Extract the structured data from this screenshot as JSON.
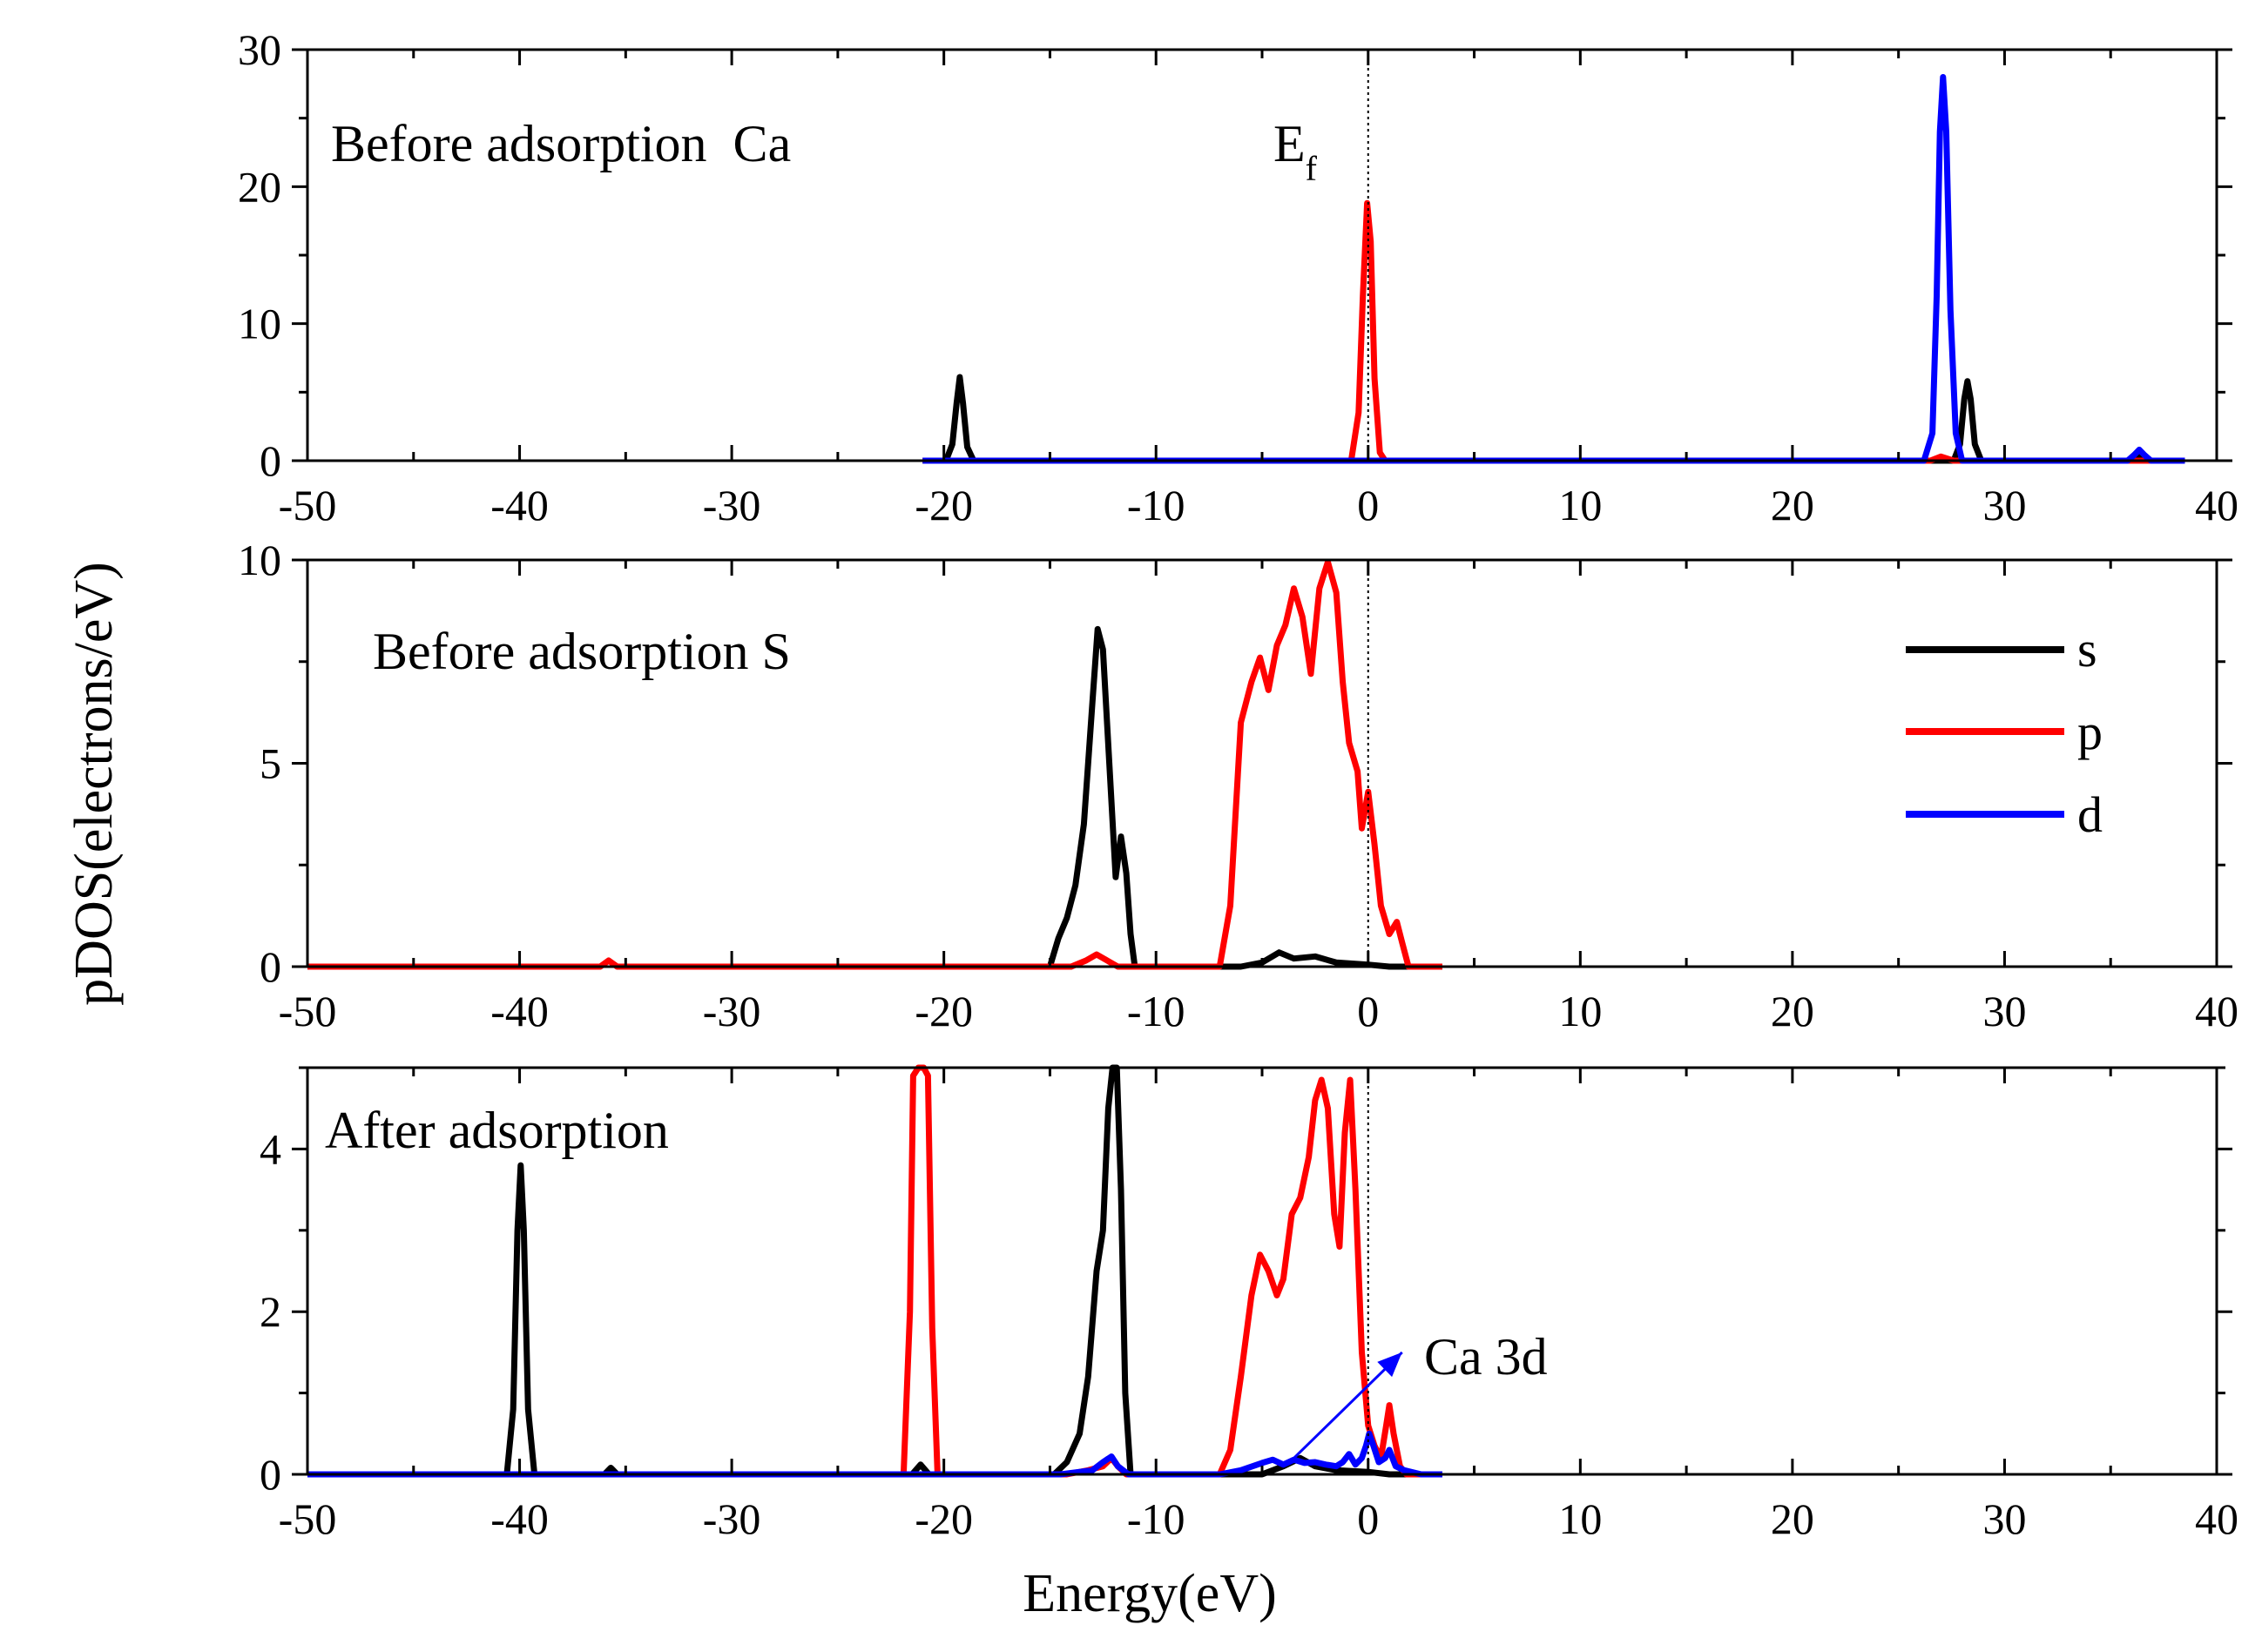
{
  "chart_data": [
    {
      "type": "line",
      "title": "Before adsorption  Ca",
      "xlabel": "Energy(eV)",
      "ylabel": "pDOS(electrons/eV)",
      "xlim": [
        -50,
        40
      ],
      "ylim": [
        0,
        30
      ],
      "x_ticks": [
        -50,
        -40,
        -30,
        -20,
        -10,
        0,
        10,
        20,
        30,
        40
      ],
      "y_ticks": [
        0,
        10,
        20,
        30
      ],
      "fermi_level": {
        "x": 0,
        "label_main": "E",
        "label_sub": "f"
      },
      "series": [
        {
          "name": "s",
          "color": "#000000",
          "points": [
            [
              -21,
              0
            ],
            [
              -19.9,
              0
            ],
            [
              -19.6,
              1.2
            ],
            [
              -19.4,
              4.2
            ],
            [
              -19.25,
              6.1
            ],
            [
              -19.1,
              4.2
            ],
            [
              -18.9,
              1.0
            ],
            [
              -18.6,
              0
            ],
            [
              27.6,
              0
            ],
            [
              27.9,
              1.2
            ],
            [
              28.1,
              4.5
            ],
            [
              28.25,
              5.8
            ],
            [
              28.4,
              4.5
            ],
            [
              28.6,
              1.2
            ],
            [
              28.9,
              0
            ],
            [
              36.0,
              0
            ],
            [
              36.3,
              0.5
            ],
            [
              36.5,
              0.2
            ],
            [
              36.8,
              0
            ],
            [
              38.5,
              0
            ]
          ]
        },
        {
          "name": "p",
          "color": "#ff0000",
          "points": [
            [
              -21,
              0
            ],
            [
              -0.8,
              0
            ],
            [
              -0.45,
              3.5
            ],
            [
              -0.25,
              12
            ],
            [
              -0.05,
              18.8
            ],
            [
              0.12,
              16
            ],
            [
              0.3,
              6
            ],
            [
              0.55,
              0.6
            ],
            [
              0.8,
              0
            ],
            [
              26.5,
              0
            ],
            [
              27.0,
              0.3
            ],
            [
              27.6,
              0
            ],
            [
              38.5,
              0
            ]
          ]
        },
        {
          "name": "d",
          "color": "#0000ff",
          "points": [
            [
              -21,
              0
            ],
            [
              26.2,
              0
            ],
            [
              26.6,
              2
            ],
            [
              26.8,
              12
            ],
            [
              26.95,
              24
            ],
            [
              27.1,
              28
            ],
            [
              27.25,
              24
            ],
            [
              27.45,
              11
            ],
            [
              27.7,
              2
            ],
            [
              28.0,
              0
            ],
            [
              35.8,
              0
            ],
            [
              36.1,
              0.4
            ],
            [
              36.35,
              0.8
            ],
            [
              36.6,
              0.4
            ],
            [
              36.9,
              0
            ],
            [
              38.5,
              0
            ]
          ]
        }
      ]
    },
    {
      "type": "line",
      "title": "Before adsorption S",
      "xlim": [
        -50,
        40
      ],
      "ylim": [
        0,
        10
      ],
      "x_ticks": [
        -50,
        -40,
        -30,
        -20,
        -10,
        0,
        10,
        20,
        30,
        40
      ],
      "y_ticks": [
        0,
        5,
        10
      ],
      "legend": {
        "position": "top-right",
        "entries": [
          "s",
          "p",
          "d"
        ]
      },
      "series": [
        {
          "name": "s",
          "color": "#000000",
          "points": [
            [
              -15.0,
              0
            ],
            [
              -14.6,
              0.7
            ],
            [
              -14.2,
              1.2
            ],
            [
              -13.8,
              2.0
            ],
            [
              -13.4,
              3.5
            ],
            [
              -13.0,
              6.5
            ],
            [
              -12.75,
              8.3
            ],
            [
              -12.5,
              7.8
            ],
            [
              -12.2,
              5.0
            ],
            [
              -11.9,
              2.2
            ],
            [
              -11.65,
              3.2
            ],
            [
              -11.4,
              2.3
            ],
            [
              -11.2,
              0.8
            ],
            [
              -11.0,
              0
            ],
            [
              -6.0,
              0
            ],
            [
              -5.0,
              0.1
            ],
            [
              -4.2,
              0.35
            ],
            [
              -3.5,
              0.2
            ],
            [
              -2.5,
              0.25
            ],
            [
              -1.5,
              0.1
            ],
            [
              0,
              0.05
            ],
            [
              1.0,
              0
            ],
            [
              3.5,
              0
            ]
          ]
        },
        {
          "name": "p",
          "color": "#ff0000",
          "points": [
            [
              -50,
              0
            ],
            [
              -36.2,
              0
            ],
            [
              -35.8,
              0.15
            ],
            [
              -35.4,
              0
            ],
            [
              -14.0,
              0
            ],
            [
              -13.3,
              0.15
            ],
            [
              -12.8,
              0.3
            ],
            [
              -12.3,
              0.15
            ],
            [
              -11.8,
              0
            ],
            [
              -7.0,
              0
            ],
            [
              -6.5,
              1.5
            ],
            [
              -6.0,
              6.0
            ],
            [
              -5.5,
              7.0
            ],
            [
              -5.1,
              7.6
            ],
            [
              -4.7,
              6.8
            ],
            [
              -4.3,
              7.9
            ],
            [
              -3.9,
              8.4
            ],
            [
              -3.5,
              9.3
            ],
            [
              -3.1,
              8.6
            ],
            [
              -2.7,
              7.2
            ],
            [
              -2.3,
              9.3
            ],
            [
              -1.9,
              9.95
            ],
            [
              -1.5,
              9.2
            ],
            [
              -1.2,
              7.0
            ],
            [
              -0.9,
              5.5
            ],
            [
              -0.5,
              4.8
            ],
            [
              -0.3,
              3.4
            ],
            [
              0.0,
              4.3
            ],
            [
              0.3,
              3.0
            ],
            [
              0.6,
              1.5
            ],
            [
              1.0,
              0.8
            ],
            [
              1.35,
              1.1
            ],
            [
              1.6,
              0.6
            ],
            [
              1.9,
              0
            ],
            [
              3.5,
              0
            ]
          ]
        }
      ]
    },
    {
      "type": "line",
      "title": "After adsorption",
      "xlim": [
        -50,
        40
      ],
      "ylim": [
        0,
        5
      ],
      "x_ticks": [
        -50,
        -40,
        -30,
        -20,
        -10,
        0,
        10,
        20,
        30,
        40
      ],
      "y_ticks": [
        0,
        2,
        4
      ],
      "annotation": {
        "text": "Ca 3d",
        "arrow_from": [
          -3.5,
          0.2
        ],
        "arrow_to": [
          1.6,
          1.5
        ]
      },
      "series": [
        {
          "name": "s",
          "color": "#000000",
          "points": [
            [
              -50,
              0
            ],
            [
              -40.6,
              0
            ],
            [
              -40.3,
              0.8
            ],
            [
              -40.1,
              3.0
            ],
            [
              -39.95,
              3.8
            ],
            [
              -39.8,
              3.0
            ],
            [
              -39.6,
              0.8
            ],
            [
              -39.3,
              0
            ],
            [
              -36.0,
              0
            ],
            [
              -35.7,
              0.08
            ],
            [
              -35.4,
              0
            ],
            [
              -21.5,
              0
            ],
            [
              -21.1,
              0.12
            ],
            [
              -20.7,
              0
            ],
            [
              -14.8,
              0
            ],
            [
              -14.2,
              0.15
            ],
            [
              -13.6,
              0.5
            ],
            [
              -13.2,
              1.2
            ],
            [
              -12.8,
              2.5
            ],
            [
              -12.5,
              3.0
            ],
            [
              -12.25,
              4.5
            ],
            [
              -12.05,
              5.0
            ],
            [
              -11.85,
              5.0
            ],
            [
              -11.65,
              3.5
            ],
            [
              -11.45,
              1.0
            ],
            [
              -11.2,
              0
            ],
            [
              -5.0,
              0
            ],
            [
              -4.0,
              0.1
            ],
            [
              -3.2,
              0.2
            ],
            [
              -2.5,
              0.1
            ],
            [
              -1.5,
              0.05
            ],
            [
              0,
              0.03
            ],
            [
              1.0,
              0
            ],
            [
              3.5,
              0
            ]
          ]
        },
        {
          "name": "p",
          "color": "#ff0000",
          "points": [
            [
              -50,
              0
            ],
            [
              -21.9,
              0
            ],
            [
              -21.6,
              2.0
            ],
            [
              -21.45,
              4.9
            ],
            [
              -21.2,
              5.0
            ],
            [
              -20.95,
              5.0
            ],
            [
              -20.75,
              4.9
            ],
            [
              -20.55,
              1.8
            ],
            [
              -20.3,
              0
            ],
            [
              -14.2,
              0
            ],
            [
              -13.2,
              0.05
            ],
            [
              -12.5,
              0.1
            ],
            [
              -12.1,
              0.2
            ],
            [
              -11.8,
              0.1
            ],
            [
              -11.4,
              0
            ],
            [
              -7.0,
              0
            ],
            [
              -6.5,
              0.3
            ],
            [
              -6.0,
              1.2
            ],
            [
              -5.5,
              2.2
            ],
            [
              -5.1,
              2.7
            ],
            [
              -4.7,
              2.5
            ],
            [
              -4.3,
              2.2
            ],
            [
              -4.0,
              2.4
            ],
            [
              -3.6,
              3.2
            ],
            [
              -3.2,
              3.4
            ],
            [
              -2.8,
              3.9
            ],
            [
              -2.5,
              4.6
            ],
            [
              -2.2,
              4.85
            ],
            [
              -1.9,
              4.5
            ],
            [
              -1.6,
              3.2
            ],
            [
              -1.35,
              2.8
            ],
            [
              -1.1,
              4.2
            ],
            [
              -0.85,
              4.85
            ],
            [
              -0.6,
              3.5
            ],
            [
              -0.3,
              1.5
            ],
            [
              0.0,
              0.6
            ],
            [
              0.3,
              0.35
            ],
            [
              0.6,
              0.2
            ],
            [
              0.85,
              0.6
            ],
            [
              1.0,
              0.85
            ],
            [
              1.2,
              0.5
            ],
            [
              1.5,
              0.1
            ],
            [
              1.8,
              0
            ],
            [
              3.5,
              0
            ]
          ]
        },
        {
          "name": "d",
          "color": "#0000ff",
          "points": [
            [
              -50,
              0
            ],
            [
              -14.5,
              0
            ],
            [
              -13.0,
              0.05
            ],
            [
              -12.5,
              0.15
            ],
            [
              -12.1,
              0.22
            ],
            [
              -11.8,
              0.1
            ],
            [
              -11.3,
              0
            ],
            [
              -7.0,
              0
            ],
            [
              -6.0,
              0.05
            ],
            [
              -5.0,
              0.14
            ],
            [
              -4.5,
              0.18
            ],
            [
              -4.0,
              0.12
            ],
            [
              -3.5,
              0.18
            ],
            [
              -3.0,
              0.14
            ],
            [
              -2.5,
              0.15
            ],
            [
              -2.0,
              0.12
            ],
            [
              -1.5,
              0.1
            ],
            [
              -1.2,
              0.15
            ],
            [
              -0.9,
              0.25
            ],
            [
              -0.6,
              0.12
            ],
            [
              -0.3,
              0.2
            ],
            [
              -0.1,
              0.35
            ],
            [
              0.05,
              0.5
            ],
            [
              0.25,
              0.35
            ],
            [
              0.5,
              0.15
            ],
            [
              0.8,
              0.2
            ],
            [
              1.0,
              0.3
            ],
            [
              1.3,
              0.1
            ],
            [
              1.7,
              0.05
            ],
            [
              2.5,
              0
            ],
            [
              3.5,
              0
            ]
          ]
        }
      ]
    }
  ]
}
